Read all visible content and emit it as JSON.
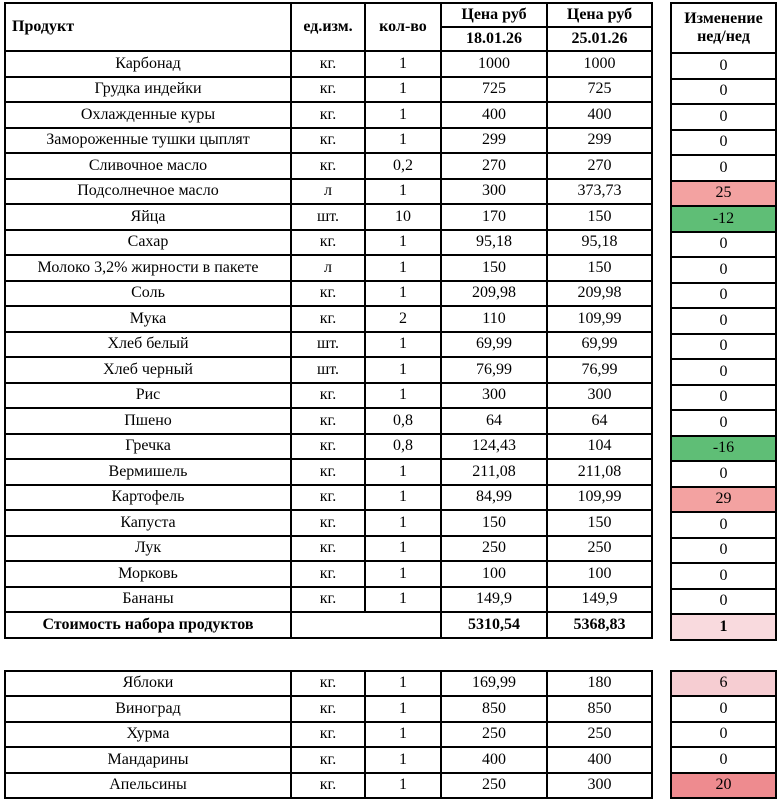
{
  "colors": {
    "border": "#000000",
    "white": "#ffffff",
    "green": "#5FBE76",
    "red": "#F3A2A1",
    "red_deep": "#EE8B8F",
    "pink_light": "#F9DADE",
    "pink_mid": "#F6CDD2"
  },
  "header": {
    "product": "Продукт",
    "unit": "ед.изм.",
    "qty": "кол-во",
    "price1_title": "Цена руб",
    "price2_title": "Цена руб",
    "price1_date": "18.01.26",
    "price2_date": "25.01.26",
    "change_line1": "Изменение",
    "change_line2": "нед/нед"
  },
  "main_table": {
    "rows": [
      {
        "product": "Карбонад",
        "unit": "кг.",
        "qty": "1",
        "price1": "1000",
        "price2": "1000",
        "change": "0",
        "change_bg": "white"
      },
      {
        "product": "Грудка индейки",
        "unit": "кг.",
        "qty": "1",
        "price1": "725",
        "price2": "725",
        "change": "0",
        "change_bg": "white"
      },
      {
        "product": "Охлажденные куры",
        "unit": "кг.",
        "qty": "1",
        "price1": "400",
        "price2": "400",
        "change": "0",
        "change_bg": "white"
      },
      {
        "product": "Замороженные тушки цыплят",
        "unit": "кг.",
        "qty": "1",
        "price1": "299",
        "price2": "299",
        "change": "0",
        "change_bg": "white"
      },
      {
        "product": "Сливочное масло",
        "unit": "кг.",
        "qty": "0,2",
        "price1": "270",
        "price2": "270",
        "change": "0",
        "change_bg": "white"
      },
      {
        "product": "Подсолнечное масло",
        "unit": "л",
        "qty": "1",
        "price1": "300",
        "price2": "373,73",
        "change": "25",
        "change_bg": "red"
      },
      {
        "product": "Яйца",
        "unit": "шт.",
        "qty": "10",
        "price1": "170",
        "price2": "150",
        "change": "-12",
        "change_bg": "green"
      },
      {
        "product": "Сахар",
        "unit": "кг.",
        "qty": "1",
        "price1": "95,18",
        "price2": "95,18",
        "change": "0",
        "change_bg": "white"
      },
      {
        "product": "Молоко 3,2% жирности в пакете",
        "unit": "л",
        "qty": "1",
        "price1": "150",
        "price2": "150",
        "change": "0",
        "change_bg": "white"
      },
      {
        "product": "Соль",
        "unit": "кг.",
        "qty": "1",
        "price1": "209,98",
        "price2": "209,98",
        "change": "0",
        "change_bg": "white"
      },
      {
        "product": "Мука",
        "unit": "кг.",
        "qty": "2",
        "price1": "110",
        "price2": "109,99",
        "change": "0",
        "change_bg": "white"
      },
      {
        "product": "Хлеб белый",
        "unit": "шт.",
        "qty": "1",
        "price1": "69,99",
        "price2": "69,99",
        "change": "0",
        "change_bg": "white"
      },
      {
        "product": "Хлеб черный",
        "unit": "шт.",
        "qty": "1",
        "price1": "76,99",
        "price2": "76,99",
        "change": "0",
        "change_bg": "white"
      },
      {
        "product": "Рис",
        "unit": "кг.",
        "qty": "1",
        "price1": "300",
        "price2": "300",
        "change": "0",
        "change_bg": "white"
      },
      {
        "product": "Пшено",
        "unit": "кг.",
        "qty": "0,8",
        "price1": "64",
        "price2": "64",
        "change": "0",
        "change_bg": "white"
      },
      {
        "product": "Гречка",
        "unit": "кг.",
        "qty": "0,8",
        "price1": "124,43",
        "price2": "104",
        "change": "-16",
        "change_bg": "green"
      },
      {
        "product": "Вермишель",
        "unit": "кг.",
        "qty": "1",
        "price1": "211,08",
        "price2": "211,08",
        "change": "0",
        "change_bg": "white"
      },
      {
        "product": "Картофель",
        "unit": "кг.",
        "qty": "1",
        "price1": "84,99",
        "price2": "109,99",
        "change": "29",
        "change_bg": "red"
      },
      {
        "product": "Капуста",
        "unit": "кг.",
        "qty": "1",
        "price1": "150",
        "price2": "150",
        "change": "0",
        "change_bg": "white"
      },
      {
        "product": "Лук",
        "unit": "кг.",
        "qty": "1",
        "price1": "250",
        "price2": "250",
        "change": "0",
        "change_bg": "white"
      },
      {
        "product": "Морковь",
        "unit": "кг.",
        "qty": "1",
        "price1": "100",
        "price2": "100",
        "change": "0",
        "change_bg": "white"
      },
      {
        "product": "Бананы",
        "unit": "кг.",
        "qty": "1",
        "price1": "149,9",
        "price2": "149,9",
        "change": "0",
        "change_bg": "white"
      }
    ],
    "totals_row": {
      "product": "Стоимость набора продуктов",
      "price1": "5310,54",
      "price2": "5368,83",
      "change": "1",
      "change_bg": "pink_light"
    }
  },
  "fruits_table": {
    "rows": [
      {
        "product": "Яблоки",
        "unit": "кг.",
        "qty": "1",
        "price1": "169,99",
        "price2": "180",
        "change": "6",
        "change_bg": "pink_mid"
      },
      {
        "product": "Виноград",
        "unit": "кг.",
        "qty": "1",
        "price1": "850",
        "price2": "850",
        "change": "0",
        "change_bg": "white"
      },
      {
        "product": "Хурма",
        "unit": "кг.",
        "qty": "1",
        "price1": "250",
        "price2": "250",
        "change": "0",
        "change_bg": "white"
      },
      {
        "product": "Мандарины",
        "unit": "кг.",
        "qty": "1",
        "price1": "400",
        "price2": "400",
        "change": "0",
        "change_bg": "white"
      },
      {
        "product": "Апельсины",
        "unit": "кг.",
        "qty": "1",
        "price1": "250",
        "price2": "300",
        "change": "20",
        "change_bg": "red_deep"
      }
    ]
  }
}
